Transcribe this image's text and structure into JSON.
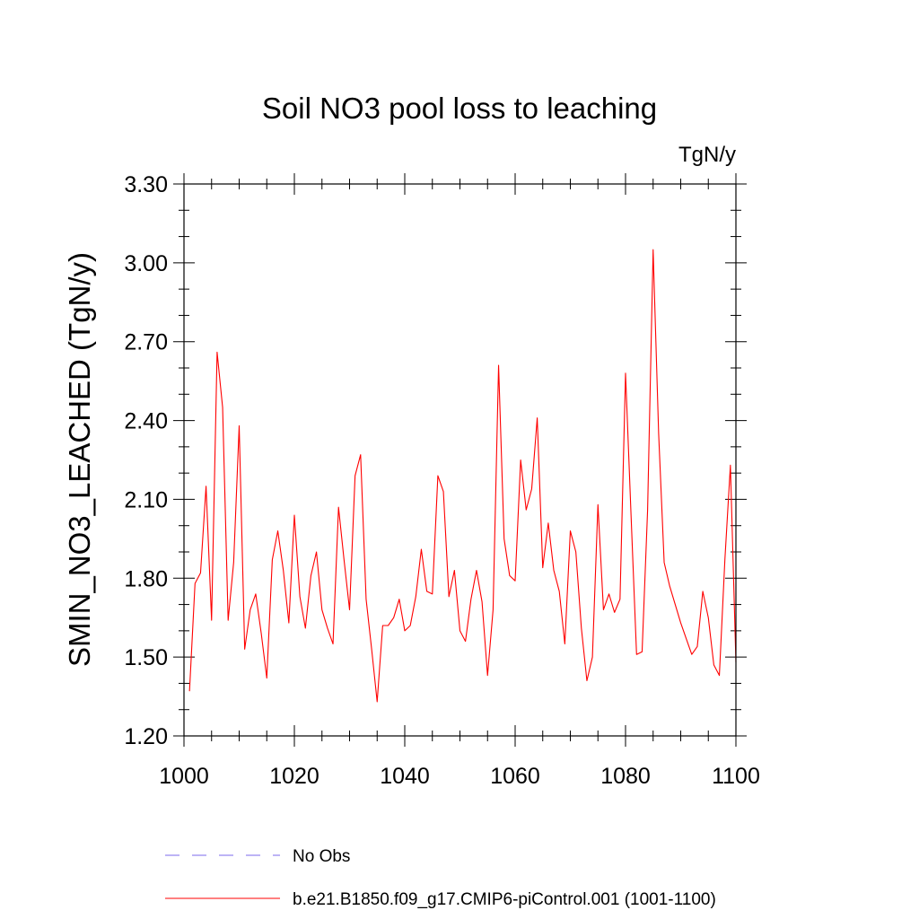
{
  "chart_data": {
    "type": "line",
    "title": "Soil NO3 pool loss to leaching",
    "units": "TgN/y",
    "xlabel": "",
    "ylabel": "SMIN_NO3_LEACHED  (TgN/y)",
    "xlim": [
      1000,
      1100
    ],
    "ylim": [
      1.2,
      3.3
    ],
    "xticks": [
      1000,
      1020,
      1040,
      1060,
      1080,
      1100
    ],
    "xtick_labels": [
      "1000",
      "1020",
      "1040",
      "1060",
      "1080",
      "1100"
    ],
    "yticks": [
      1.2,
      1.5,
      1.8,
      2.1,
      2.4,
      2.7,
      3.0,
      3.3
    ],
    "ytick_labels": [
      "1.20",
      "1.50",
      "1.80",
      "2.10",
      "2.40",
      "2.70",
      "3.00",
      "3.30"
    ],
    "legend": [
      {
        "label": "No Obs",
        "color": "#7b68ee",
        "style": "dashed"
      },
      {
        "label": "b.e21.B1850.f09_g17.CMIP6-piControl.001 (1001-1100)",
        "color": "#ff0000",
        "style": "solid"
      }
    ],
    "series": [
      {
        "name": "b.e21.B1850.f09_g17.CMIP6-piControl.001 (1001-1100)",
        "color": "#ff0000",
        "x": [
          1001,
          1002,
          1003,
          1004,
          1005,
          1006,
          1007,
          1008,
          1009,
          1010,
          1011,
          1012,
          1013,
          1014,
          1015,
          1016,
          1017,
          1018,
          1019,
          1020,
          1021,
          1022,
          1023,
          1024,
          1025,
          1026,
          1027,
          1028,
          1029,
          1030,
          1031,
          1032,
          1033,
          1034,
          1035,
          1036,
          1037,
          1038,
          1039,
          1040,
          1041,
          1042,
          1043,
          1044,
          1045,
          1046,
          1047,
          1048,
          1049,
          1050,
          1051,
          1052,
          1053,
          1054,
          1055,
          1056,
          1057,
          1058,
          1059,
          1060,
          1061,
          1062,
          1063,
          1064,
          1065,
          1066,
          1067,
          1068,
          1069,
          1070,
          1071,
          1072,
          1073,
          1074,
          1075,
          1076,
          1077,
          1078,
          1079,
          1080,
          1081,
          1082,
          1083,
          1084,
          1085,
          1086,
          1087,
          1088,
          1089,
          1090,
          1091,
          1092,
          1093,
          1094,
          1095,
          1096,
          1097,
          1098,
          1099,
          1100
        ],
        "values": [
          1.37,
          1.78,
          1.82,
          2.15,
          1.64,
          2.66,
          2.45,
          1.64,
          1.86,
          2.38,
          1.53,
          1.68,
          1.74,
          1.59,
          1.42,
          1.87,
          1.98,
          1.83,
          1.63,
          2.04,
          1.73,
          1.61,
          1.81,
          1.9,
          1.68,
          1.61,
          1.55,
          2.07,
          1.87,
          1.68,
          2.19,
          2.27,
          1.72,
          1.53,
          1.33,
          1.62,
          1.62,
          1.65,
          1.72,
          1.6,
          1.62,
          1.73,
          1.91,
          1.75,
          1.74,
          2.19,
          2.13,
          1.73,
          1.83,
          1.6,
          1.56,
          1.72,
          1.83,
          1.71,
          1.43,
          1.68,
          2.61,
          1.95,
          1.81,
          1.79,
          2.25,
          2.06,
          2.14,
          2.41,
          1.84,
          2.01,
          1.83,
          1.75,
          1.55,
          1.98,
          1.9,
          1.61,
          1.41,
          1.5,
          2.08,
          1.68,
          1.74,
          1.67,
          1.72,
          2.58,
          2.04,
          1.51,
          1.52,
          2.06,
          3.05,
          2.35,
          1.86,
          1.77,
          1.7,
          1.63,
          1.57,
          1.51,
          1.54,
          1.75,
          1.65,
          1.47,
          1.43,
          1.87,
          2.23,
          1.48
        ]
      }
    ]
  }
}
